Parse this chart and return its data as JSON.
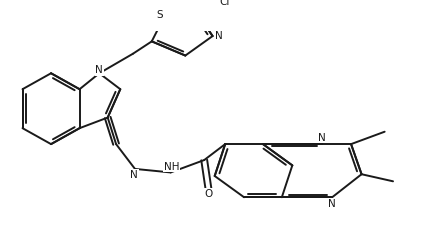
{
  "background_color": "#ffffff",
  "line_color": "#1a1a1a",
  "line_width": 1.4,
  "fig_width": 4.21,
  "fig_height": 2.44,
  "dpi": 100,
  "xlim": [
    0,
    10
  ],
  "ylim": [
    0,
    6
  ]
}
